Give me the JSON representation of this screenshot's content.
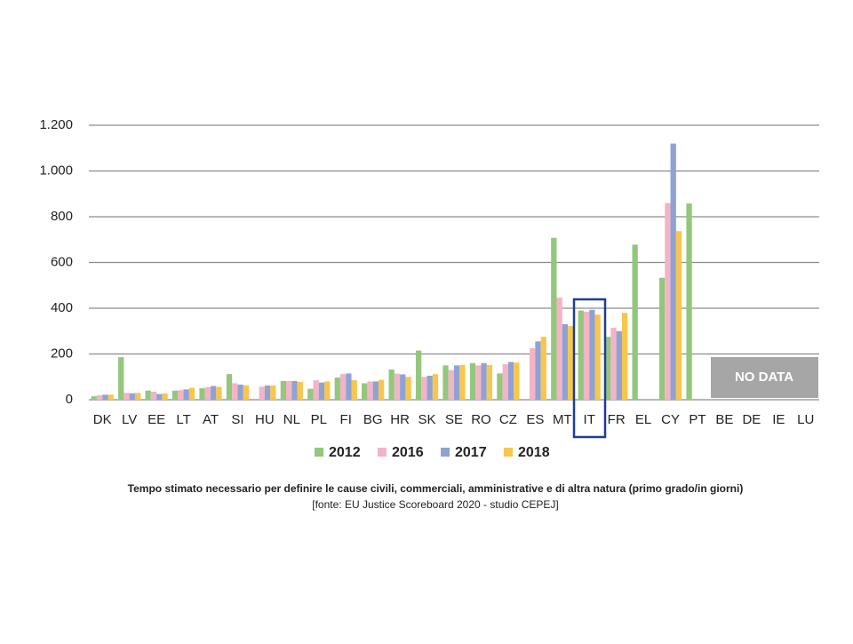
{
  "chart_data": {
    "type": "bar",
    "caption": "Tempo stimato  necessario per definire le cause civili, commerciali, amministrative e di altra natura (primo grado/in giorni)",
    "source": "[fonte: EU Justice Scoreboard 2020 - studio CEPEJ]",
    "annotation": "NO DATA",
    "categories": [
      "DK",
      "LV",
      "EE",
      "LT",
      "AT",
      "SI",
      "HU",
      "NL",
      "PL",
      "FI",
      "BG",
      "HR",
      "SK",
      "SE",
      "RO",
      "CZ",
      "ES",
      "MT",
      "IT",
      "FR",
      "EL",
      "CY",
      "PT",
      "BE",
      "DE",
      "IE",
      "LU"
    ],
    "series": [
      {
        "name": "2012",
        "color": "#93c77d",
        "values": [
          15,
          186,
          40,
          40,
          50,
          112,
          null,
          82,
          48,
          97,
          72,
          132,
          215,
          150,
          160,
          115,
          null,
          708,
          390,
          275,
          678,
          533,
          858,
          null,
          null,
          null,
          null
        ]
      },
      {
        "name": "2016",
        "color": "#f3b4c5",
        "values": [
          20,
          30,
          35,
          42,
          55,
          72,
          57,
          82,
          85,
          112,
          80,
          114,
          100,
          130,
          150,
          155,
          225,
          446,
          385,
          315,
          null,
          860,
          null,
          null,
          null,
          null,
          null
        ]
      },
      {
        "name": "2017",
        "color": "#8fa2d4",
        "values": [
          22,
          28,
          25,
          45,
          60,
          66,
          62,
          82,
          75,
          115,
          80,
          111,
          105,
          150,
          160,
          165,
          255,
          330,
          393,
          300,
          null,
          1120,
          null,
          null,
          null,
          null,
          null
        ]
      },
      {
        "name": "2018",
        "color": "#f8c64c",
        "values": [
          22,
          30,
          28,
          52,
          56,
          63,
          62,
          78,
          80,
          85,
          87,
          100,
          112,
          152,
          152,
          162,
          275,
          322,
          372,
          380,
          null,
          737,
          null,
          null,
          null,
          null,
          null
        ]
      }
    ],
    "ylim": [
      0,
      1200
    ],
    "yticks": [
      0,
      200,
      400,
      600,
      800,
      {
        "value": 1000,
        "label": "1.000"
      },
      {
        "value": 1200,
        "label": "1.200"
      }
    ],
    "grid": true
  }
}
